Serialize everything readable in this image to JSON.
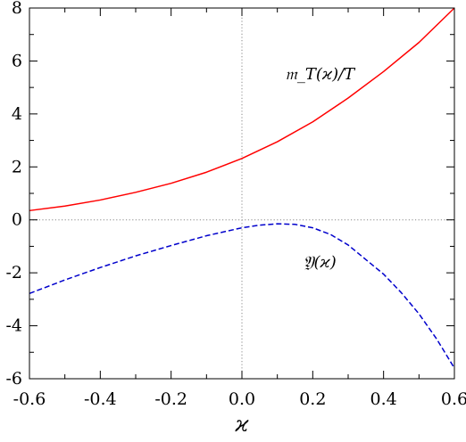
{
  "chart_data": {
    "type": "line",
    "title": "",
    "xlabel": "ϰ",
    "ylabel": "",
    "xlim": [
      -0.6,
      0.6
    ],
    "ylim": [
      -6,
      8
    ],
    "xticks": [
      -0.6,
      -0.4,
      -0.2,
      0.0,
      0.2,
      0.4,
      0.6
    ],
    "xtick_labels": [
      "-0.6",
      "-0.4",
      "-0.2",
      "0.0",
      "0.2",
      "0.4",
      "0.6"
    ],
    "yticks": [
      -6,
      -4,
      -2,
      0,
      2,
      4,
      6,
      8
    ],
    "ytick_labels": [
      "-6",
      "-4",
      "-2",
      "0",
      "2",
      "4",
      "6",
      "8"
    ],
    "reference_lines": [
      {
        "orientation": "horizontal",
        "value": 0,
        "style": "dotted",
        "color": "#888888"
      },
      {
        "orientation": "vertical",
        "value": 0,
        "style": "dotted",
        "color": "#888888"
      }
    ],
    "grid": false,
    "series": [
      {
        "name": "𝔪_T(ϰ)/T",
        "style": "solid",
        "color": "#ff0000",
        "x": [
          -0.6,
          -0.5,
          -0.4,
          -0.3,
          -0.2,
          -0.1,
          0.0,
          0.1,
          0.2,
          0.3,
          0.4,
          0.5,
          0.6
        ],
        "y": [
          0.35,
          0.52,
          0.75,
          1.04,
          1.38,
          1.8,
          2.32,
          2.95,
          3.7,
          4.6,
          5.6,
          6.7,
          8.0
        ]
      },
      {
        "name": "𝔜(ϰ)",
        "style": "dashed",
        "color": "#0000cc",
        "x": [
          -0.6,
          -0.5,
          -0.4,
          -0.3,
          -0.2,
          -0.1,
          0.0,
          0.05,
          0.1,
          0.15,
          0.2,
          0.25,
          0.3,
          0.35,
          0.4,
          0.45,
          0.5,
          0.55,
          0.6
        ],
        "y": [
          -2.78,
          -2.27,
          -1.8,
          -1.36,
          -0.97,
          -0.6,
          -0.3,
          -0.2,
          -0.15,
          -0.17,
          -0.3,
          -0.55,
          -0.95,
          -1.5,
          -2.05,
          -2.75,
          -3.55,
          -4.5,
          -5.6
        ]
      }
    ],
    "annotations": [
      {
        "series": 0,
        "text": "𝔪_T(ϰ)/T",
        "x": 0.22,
        "y": 5.3
      },
      {
        "series": 1,
        "text": "𝔜(ϰ)",
        "x": 0.22,
        "y": -1.8
      }
    ]
  }
}
